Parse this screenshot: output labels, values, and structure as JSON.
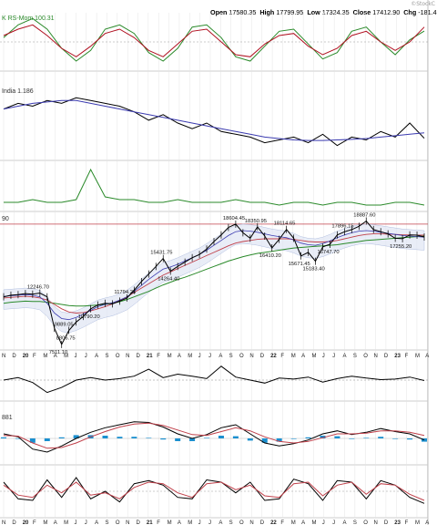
{
  "header": {
    "open_label": "Open",
    "open": "17580.35",
    "high_label": "High",
    "high": "17799.95",
    "low_label": "Low",
    "low": "17324.35",
    "close_label": "Close",
    "close": "17412.90",
    "chg_label": "Chg",
    "chg": "-181.45",
    "brand": "©StockC"
  },
  "colors": {
    "price_line": "#000000",
    "ma_green": "#2a8a2a",
    "ma_red": "#c0404a",
    "ma_blue": "#3b3bb0",
    "band_fill": "#cfd8f0",
    "indicator_red": "#b01020",
    "indicator_green": "#2a8a2a",
    "macd_bars": "#1a8fcf"
  },
  "chart_data": [
    {
      "panel": "rs-mom",
      "type": "line",
      "title": "K RS-Mom 100.31",
      "series": [
        {
          "color": "#2a8a2a",
          "values": [
            100.0,
            100.6,
            100.9,
            100.4,
            99.5,
            98.9,
            99.4,
            100.4,
            100.6,
            100.2,
            99.3,
            98.9,
            99.5,
            100.5,
            100.6,
            100.0,
            99.1,
            98.9,
            99.6,
            100.3,
            100.4,
            99.7,
            99.0,
            99.3,
            100.3,
            100.5,
            99.8,
            99.2,
            99.9,
            100.31
          ]
        },
        {
          "color": "#b01020",
          "values": [
            100.1,
            100.4,
            100.6,
            100.1,
            99.5,
            99.1,
            99.6,
            100.2,
            100.4,
            100.0,
            99.4,
            99.1,
            99.7,
            100.3,
            100.4,
            99.8,
            99.2,
            99.1,
            99.7,
            100.1,
            100.2,
            99.6,
            99.2,
            99.5,
            100.1,
            100.3,
            99.8,
            99.4,
            99.8,
            100.5
          ]
        }
      ],
      "ylim": [
        98.6,
        101.0
      ]
    },
    {
      "panel": "ratio",
      "type": "line",
      "title": "India 1.186",
      "series": [
        {
          "color": "#000000",
          "values": [
            1.29,
            1.31,
            1.3,
            1.32,
            1.31,
            1.33,
            1.32,
            1.31,
            1.3,
            1.28,
            1.25,
            1.27,
            1.24,
            1.22,
            1.24,
            1.21,
            1.2,
            1.19,
            1.17,
            1.18,
            1.19,
            1.17,
            1.2,
            1.16,
            1.19,
            1.18,
            1.21,
            1.19,
            1.24,
            1.186
          ]
        },
        {
          "color": "#3b3bb0",
          "values": [
            1.29,
            1.3,
            1.31,
            1.315,
            1.32,
            1.32,
            1.31,
            1.3,
            1.29,
            1.28,
            1.27,
            1.26,
            1.25,
            1.24,
            1.23,
            1.22,
            1.21,
            1.2,
            1.19,
            1.185,
            1.18,
            1.178,
            1.178,
            1.18,
            1.182,
            1.185,
            1.19,
            1.195,
            1.2,
            1.205
          ]
        }
      ],
      "ylim": [
        1.12,
        1.36
      ]
    },
    {
      "panel": "spike-indicator",
      "type": "line",
      "title": "",
      "series": [
        {
          "color": "#2a8a2a",
          "values": [
            2,
            2,
            3,
            2,
            2,
            3,
            14,
            4,
            3,
            3,
            2,
            2,
            3,
            2,
            2,
            2,
            3,
            2,
            2,
            1,
            2,
            2,
            1,
            2,
            2,
            1,
            1,
            2,
            2,
            1
          ]
        }
      ],
      "ylim": [
        0,
        16
      ]
    },
    {
      "panel": "price",
      "type": "line",
      "title": "90",
      "ylim": [
        7000,
        19600
      ],
      "xlabel": "",
      "ylabel": "",
      "x_ticks": [
        "N",
        "D",
        "20",
        "F",
        "M",
        "A",
        "M",
        "J",
        "J",
        "A",
        "S",
        "O",
        "N",
        "D",
        "21",
        "F",
        "M",
        "A",
        "M",
        "J",
        "J",
        "A",
        "S",
        "O",
        "N",
        "D",
        "22",
        "F",
        "M",
        "A",
        "M",
        "J",
        "J",
        "A",
        "S",
        "O",
        "N",
        "D",
        "23",
        "F",
        "M",
        "A"
      ],
      "price": [
        11900,
        12050,
        12100,
        12200,
        12150,
        12246.7,
        11900,
        9000,
        7511.1,
        8806.75,
        9580,
        10100,
        10800,
        11150,
        11300,
        11250,
        11500,
        11794.25,
        12500,
        13300,
        14000,
        14700,
        15431.75,
        14264.4,
        14700,
        15100,
        15500,
        15800,
        16300,
        17000,
        17600,
        18300,
        18604.45,
        17800,
        17300,
        18350.95,
        17500,
        16410.2,
        17200,
        18114.65,
        17300,
        15671.45,
        16000,
        15183.4,
        16500,
        16747.7,
        17600,
        17896.15,
        18100,
        18400,
        18887.6,
        18100,
        17900,
        17700,
        17300,
        17255.2,
        17600,
        17580.35,
        17412.9
      ],
      "ma_green": [
        11300,
        11400,
        11450,
        11500,
        11480,
        11470,
        11400,
        11300,
        11200,
        11100,
        11050,
        11050,
        11100,
        11150,
        11200,
        11300,
        11450,
        11650,
        11900,
        12150,
        12400,
        12700,
        13000,
        13250,
        13500,
        13700,
        13950,
        14200,
        14450,
        14700,
        14950,
        15200,
        15400,
        15600,
        15750,
        15900,
        16000,
        16100,
        16200,
        16300,
        16400,
        16450,
        16500,
        16550,
        16600,
        16650,
        16700,
        16800,
        16900,
        17000,
        17100,
        17150,
        17200,
        17250,
        17300,
        17350,
        17400,
        17450,
        17500
      ],
      "ma_red": [
        11800,
        11850,
        11900,
        11950,
        11900,
        11800,
        11600,
        11200,
        10800,
        10500,
        10400,
        10450,
        10600,
        10800,
        11000,
        11250,
        11550,
        11900,
        12300,
        12700,
        13100,
        13500,
        13900,
        14200,
        14500,
        14800,
        15100,
        15400,
        15700,
        16000,
        16300,
        16600,
        16850,
        17000,
        17100,
        17200,
        17250,
        17250,
        17250,
        17250,
        17200,
        17100,
        17000,
        16950,
        16950,
        17000,
        17100,
        17250,
        17400,
        17550,
        17650,
        17700,
        17700,
        17680,
        17650,
        17620,
        17600,
        17590,
        17580
      ],
      "ma_blue": [
        11950,
        12000,
        12050,
        12100,
        12050,
        11900,
        11300,
        10400,
        9900,
        9800,
        10000,
        10300,
        10650,
        11000,
        11200,
        11350,
        11600,
        11900,
        12400,
        12950,
        13500,
        14000,
        14450,
        14650,
        14900,
        15200,
        15500,
        15800,
        16200,
        16650,
        17100,
        17550,
        17900,
        18000,
        17950,
        17850,
        17700,
        17550,
        17450,
        17350,
        17150,
        16850,
        16700,
        16650,
        16800,
        17050,
        17350,
        17600,
        17800,
        17950,
        18000,
        17950,
        17850,
        17750,
        17650,
        17550,
        17500,
        17450,
        17400
      ],
      "horizontal_line": 18604.45,
      "labels": [
        {
          "text": "12246.70",
          "i": 5,
          "pos": "above"
        },
        {
          "text": "7511.10",
          "i": 8,
          "pos": "below"
        },
        {
          "text": "9889.05",
          "i": 9,
          "pos": "above-left"
        },
        {
          "text": "8806.75",
          "i": 9,
          "pos": "below"
        },
        {
          "text": "10790.20",
          "i": 12,
          "pos": "below"
        },
        {
          "text": "11794.25",
          "i": 17,
          "pos": "above"
        },
        {
          "text": "15431.75",
          "i": 22,
          "pos": "above"
        },
        {
          "text": "14264.40",
          "i": 23,
          "pos": "below"
        },
        {
          "text": "18604.45",
          "i": 32,
          "pos": "above"
        },
        {
          "text": "18350.95",
          "i": 35,
          "pos": "above"
        },
        {
          "text": "16410.20",
          "i": 37,
          "pos": "below"
        },
        {
          "text": "18114.65",
          "i": 39,
          "pos": "above"
        },
        {
          "text": "15671.45",
          "i": 41,
          "pos": "below"
        },
        {
          "text": "15183.40",
          "i": 43,
          "pos": "below"
        },
        {
          "text": "16747.70",
          "i": 45,
          "pos": "below"
        },
        {
          "text": "17896.15",
          "i": 47,
          "pos": "above"
        },
        {
          "text": "18887.60",
          "i": 50,
          "pos": "above"
        },
        {
          "text": "17255.20",
          "i": 55,
          "pos": "below"
        }
      ]
    },
    {
      "panel": "lower-1",
      "type": "line",
      "title": "",
      "series": [
        {
          "color": "#000000",
          "values": [
            0,
            0.5,
            -0.5,
            -2.5,
            -1.5,
            0,
            0.5,
            0,
            0.3,
            0.8,
            2.2,
            0.5,
            1.2,
            0.8,
            0.3,
            2.8,
            0.6,
            0,
            -0.6,
            0.4,
            0.2,
            0.6,
            -0.4,
            0.3,
            0.8,
            0.4,
            0.1,
            0.2,
            0.6,
            -0.1
          ]
        }
      ],
      "ylim": [
        -3.5,
        3.5
      ]
    },
    {
      "panel": "macd",
      "type": "line",
      "title": "881",
      "series": [
        {
          "color": "#000000",
          "values": [
            0.6,
            0.2,
            -1.4,
            -1.8,
            -1.0,
            0.0,
            0.8,
            1.4,
            1.8,
            2.2,
            2.1,
            1.5,
            0.6,
            0.0,
            0.5,
            1.4,
            1.8,
            0.6,
            -0.6,
            -1.0,
            -0.7,
            -0.2,
            0.6,
            1.0,
            0.5,
            0.8,
            1.3,
            0.9,
            0.6,
            -0.2
          ]
        },
        {
          "color": "#c0404a",
          "values": [
            0.4,
            0.3,
            -0.6,
            -1.3,
            -1.2,
            -0.6,
            0.2,
            0.9,
            1.5,
            1.9,
            2.0,
            1.7,
            1.1,
            0.5,
            0.4,
            0.9,
            1.4,
            1.0,
            0.2,
            -0.4,
            -0.6,
            -0.4,
            0.1,
            0.6,
            0.6,
            0.7,
            1.0,
            1.0,
            0.8,
            0.4
          ]
        }
      ],
      "ylim": [
        -3,
        3
      ]
    },
    {
      "panel": "rsi",
      "type": "line",
      "title": "",
      "series": [
        {
          "color": "#000000",
          "values": [
            62,
            40,
            38,
            65,
            42,
            68,
            40,
            50,
            36,
            60,
            64,
            58,
            42,
            40,
            65,
            62,
            48,
            62,
            38,
            40,
            66,
            60,
            38,
            64,
            62,
            40,
            64,
            58,
            42,
            34
          ]
        },
        {
          "color": "#c0404a",
          "values": [
            58,
            45,
            42,
            58,
            48,
            62,
            45,
            48,
            40,
            55,
            62,
            60,
            48,
            42,
            60,
            62,
            52,
            58,
            44,
            42,
            60,
            62,
            44,
            58,
            62,
            46,
            60,
            58,
            46,
            38
          ]
        }
      ],
      "ylim": [
        20,
        80
      ]
    }
  ]
}
